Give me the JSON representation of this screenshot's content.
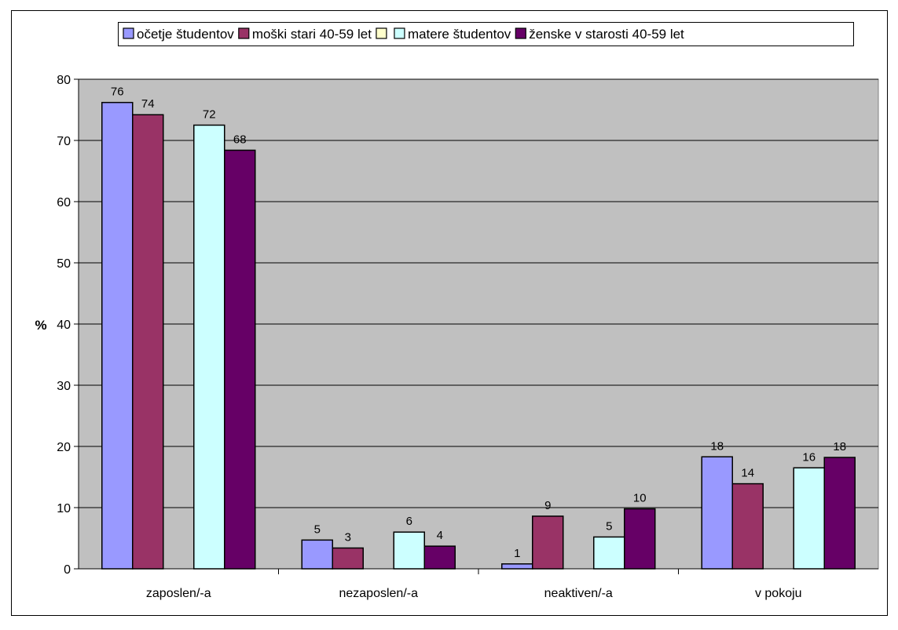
{
  "chart_data": {
    "type": "bar",
    "title": "",
    "xlabel": "",
    "ylabel": "%",
    "ylim": [
      0,
      80
    ],
    "yticks": [
      0,
      10,
      20,
      30,
      40,
      50,
      60,
      70,
      80
    ],
    "grid": true,
    "legend_position": "top",
    "categories": [
      "zaposlen/-a",
      "nezaposlen/-a",
      "neaktiven/-a",
      "v pokoju"
    ],
    "series": [
      {
        "name": "očetje študentov",
        "color": "#9999ff",
        "values": [
          76.2,
          4.7,
          0.8,
          18.3
        ],
        "labels": [
          "76",
          "5",
          "1",
          "18"
        ]
      },
      {
        "name": "moški stari 40-59 let",
        "color": "#993366",
        "values": [
          74.2,
          3.4,
          8.6,
          13.9
        ],
        "labels": [
          "74",
          "3",
          "9",
          "14"
        ]
      },
      {
        "name": "",
        "color": "#ffffcc",
        "values": [
          null,
          null,
          null,
          null
        ],
        "labels": [
          "",
          "",
          "",
          ""
        ]
      },
      {
        "name": "matere študentov",
        "color": "#ccffff",
        "values": [
          72.5,
          6.0,
          5.2,
          16.5
        ],
        "labels": [
          "72",
          "6",
          "5",
          "16"
        ]
      },
      {
        "name": "ženske v starosti 40-59 let",
        "color": "#660066",
        "values": [
          68.4,
          3.7,
          9.8,
          18.2
        ],
        "labels": [
          "68",
          "4",
          "10",
          "18"
        ]
      }
    ],
    "plot_background": "#c0c0c0"
  }
}
